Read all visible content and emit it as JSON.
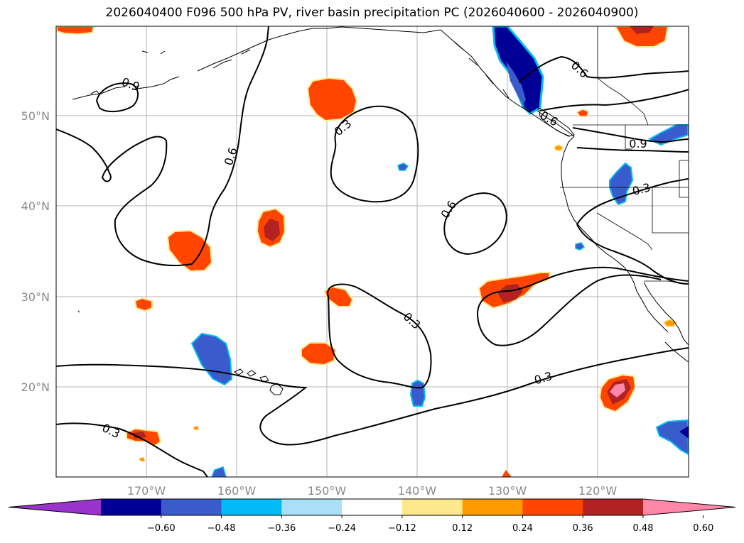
{
  "title": "2026040400 F096 500 hPa PV, river basin precipitation PC (2026040600 - 2026040900)",
  "latitude_labels": [
    "50°N",
    "40°N",
    "30°N",
    "20°N"
  ],
  "longitude_labels": [
    "170°W",
    "160°W",
    "150°W",
    "140°W",
    "130°W",
    "120°W"
  ],
  "pv_contour_labels": [
    "0.9",
    "0.6",
    "0.3",
    "0.3",
    "0.6",
    "0.6",
    "0.6",
    "0.9",
    "0.3",
    "0.3",
    "0.3",
    "0.3"
  ],
  "colorbar": {
    "tick_labels": [
      "−0.60",
      "−0.48",
      "−0.36",
      "−0.24",
      "−0.12",
      "0.12",
      "0.24",
      "0.36",
      "0.48",
      "0.60"
    ],
    "colors": [
      "#9933cc",
      "#000096",
      "#3a5bcc",
      "#00bbf7",
      "#aadff8",
      "#ffffff",
      "#fde98c",
      "#ff9a00",
      "#ff4500",
      "#b22222",
      "#ff88a8"
    ]
  }
}
